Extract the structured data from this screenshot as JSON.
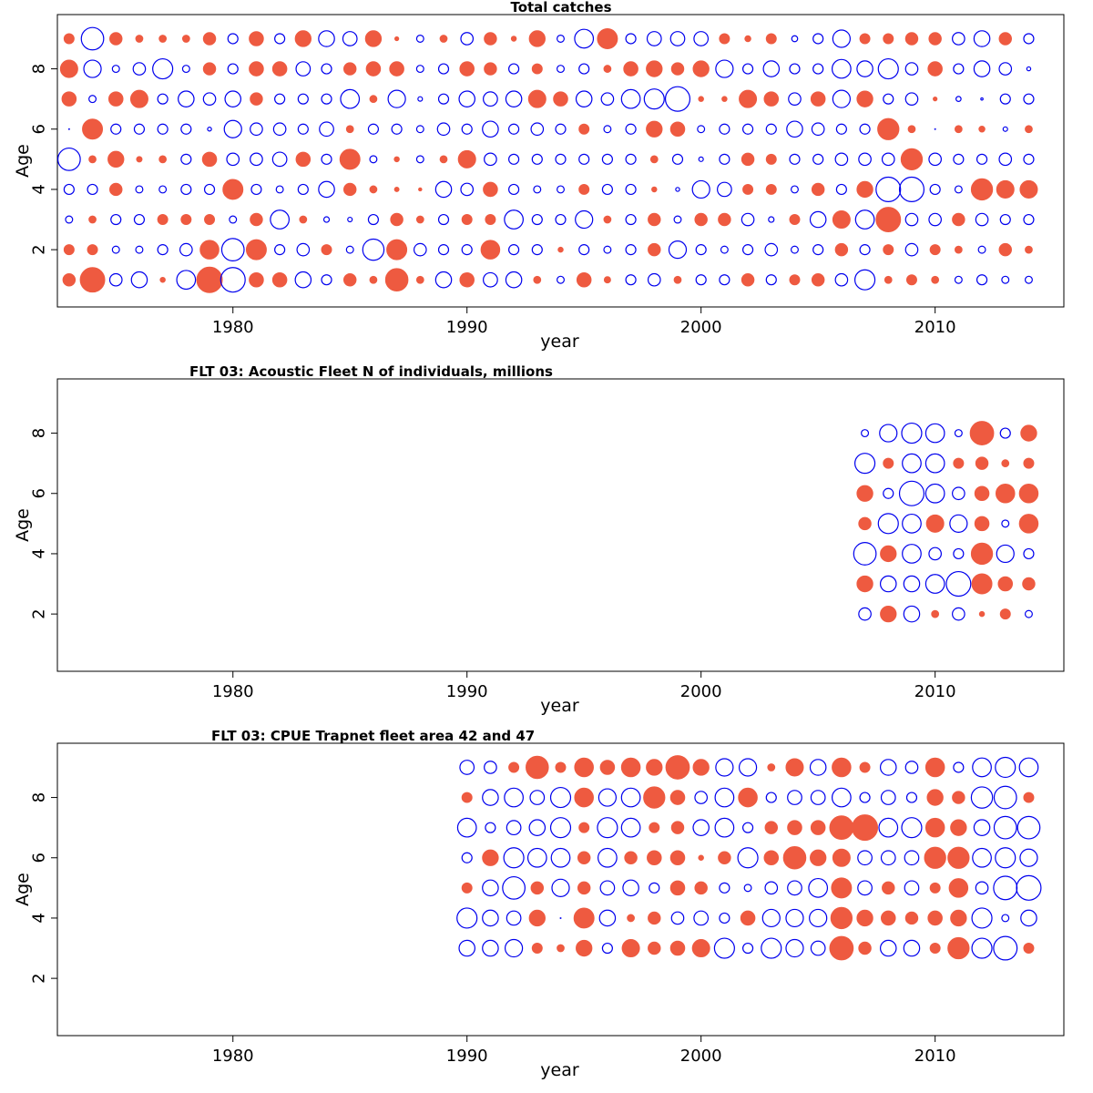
{
  "colors": {
    "positive": "#EE5A40",
    "negative": "#0000EE",
    "frame": "#000000"
  },
  "chart_data": [
    {
      "type": "scatter",
      "subtype": "bubble",
      "title": "Total catches",
      "xlabel": "year",
      "ylabel": "Age",
      "xlim": [
        1972.5,
        2015.5
      ],
      "ylim": [
        0.1,
        9.8
      ],
      "xticks": [
        1980,
        1990,
        2000,
        2010
      ],
      "yticks": [
        2,
        4,
        6,
        8
      ],
      "years": [
        1973,
        1974,
        1975,
        1976,
        1977,
        1978,
        1979,
        1980,
        1981,
        1982,
        1983,
        1984,
        1985,
        1986,
        1987,
        1988,
        1989,
        1990,
        1991,
        1992,
        1993,
        1994,
        1995,
        1996,
        1997,
        1998,
        1999,
        2000,
        2001,
        2002,
        2003,
        2004,
        2005,
        2006,
        2007,
        2008,
        2009,
        2010,
        2011,
        2012,
        2013,
        2014
      ],
      "ages": [
        1,
        2,
        3,
        4,
        5,
        6,
        7,
        8,
        9
      ],
      "values": [
        [
          3,
          12,
          -3,
          -5,
          0.5,
          -7,
          13,
          -12,
          4,
          4,
          -5,
          -2,
          3,
          1,
          10,
          1,
          -5,
          4,
          -4,
          -5,
          1,
          -1,
          4,
          0.8,
          -2,
          -3,
          1,
          -2,
          -2,
          3,
          -2,
          2,
          3,
          -3,
          -8,
          1,
          2,
          1,
          -1,
          -2,
          -1,
          -1
        ],
        [
          2,
          2,
          -1,
          -1,
          -2,
          -3,
          7,
          -10,
          8,
          -2,
          -3,
          2,
          -1,
          -9,
          8,
          -3,
          -2,
          -2,
          7,
          -2,
          -2,
          0.5,
          -2,
          -1,
          -2,
          3,
          -6,
          -2,
          -1,
          -2,
          -3,
          -1,
          -2,
          3,
          -2,
          2,
          -3,
          2,
          1,
          -1,
          3,
          1
        ],
        [
          -1,
          1,
          -2,
          -2,
          2,
          2,
          2,
          -1,
          3,
          -7,
          1,
          -0.6,
          -0.4,
          -2,
          3,
          1,
          -2,
          2,
          2,
          -7,
          -2,
          -2,
          -6,
          1,
          -2,
          3,
          -1,
          3,
          3,
          -3,
          -0.6,
          2,
          -5,
          6,
          -7,
          12,
          -3,
          -3,
          3,
          -3,
          -2,
          -2
        ],
        [
          -2,
          -2,
          3,
          -1,
          -1,
          -2,
          -2,
          8,
          -2,
          -1,
          -2,
          -5,
          3,
          1,
          0.4,
          0.2,
          -5,
          -3,
          4,
          -2,
          -1,
          -1,
          2,
          -2,
          -2,
          0.5,
          -0.3,
          -6,
          -4,
          2,
          2,
          -1,
          3,
          -2,
          5,
          -12,
          -12,
          -2,
          -1,
          9,
          6,
          6
        ],
        [
          -10,
          1,
          5,
          0.6,
          1,
          -2,
          4,
          -3,
          -3,
          -4,
          4,
          -2,
          8,
          -1,
          0.5,
          -1,
          1,
          6,
          -3,
          -2,
          -2,
          -2,
          -2,
          -2,
          -2,
          1,
          -2,
          -0.4,
          -2,
          3,
          2,
          -2,
          -2,
          -3,
          -3,
          -3,
          9,
          -3,
          -2,
          -2,
          -3,
          -2
        ],
        [
          0,
          8,
          -2,
          -2,
          -2,
          -2,
          -0.3,
          -6,
          -3,
          -3,
          -2,
          -4,
          1,
          -2,
          -2,
          -1,
          -3,
          -2,
          -5,
          -2,
          -3,
          -2,
          2,
          -1,
          -2,
          5,
          4,
          -1,
          -2,
          -2,
          -2,
          -5,
          -3,
          -2,
          -2,
          9,
          1,
          0,
          1,
          0.7,
          -0.4,
          1
        ],
        [
          4,
          -1,
          4,
          6,
          -2,
          -5,
          -3,
          -5,
          3,
          -2,
          -2,
          -2,
          -7,
          1,
          -6,
          -0.4,
          -2,
          -5,
          -4,
          -5,
          6,
          4,
          -5,
          -3,
          -7,
          -8,
          -12,
          0.5,
          0.5,
          6,
          4,
          -3,
          4,
          -6,
          5,
          -2,
          -3,
          0.3,
          -0.5,
          -0.1,
          -2,
          -2
        ],
        [
          6,
          -6,
          -1,
          -3,
          -8,
          -1,
          3,
          -2,
          4,
          4,
          -4,
          -2,
          3,
          4,
          4,
          -1,
          -2,
          4,
          3,
          -2,
          2,
          -1,
          -2,
          1,
          4,
          5,
          3,
          5,
          -6,
          -2,
          -5,
          -2,
          -2,
          -7,
          -5,
          -8,
          -3,
          4,
          -2,
          -5,
          -3,
          -0.3
        ],
        [
          2,
          -10,
          3,
          1,
          1,
          1,
          3,
          -2,
          4,
          -2,
          5,
          -5,
          -4,
          5,
          0.3,
          -1,
          1,
          -3,
          3,
          0.5,
          5,
          -1,
          -7,
          8,
          -2,
          -4,
          -4,
          -4,
          2,
          0.7,
          2,
          -0.7,
          -2,
          -6,
          2,
          2,
          3,
          3,
          -3,
          -5,
          3,
          -2
        ]
      ]
    },
    {
      "type": "scatter",
      "subtype": "bubble",
      "title": "FLT 03: Acoustic Fleet   N of individuals, millions",
      "xlabel": "year",
      "ylabel": "Age",
      "xlim": [
        1972.5,
        2015.5
      ],
      "ylim": [
        0.1,
        9.8
      ],
      "xticks": [
        1980,
        1990,
        2000,
        2010
      ],
      "yticks": [
        2,
        4,
        6,
        8
      ],
      "years": [
        2007,
        2008,
        2009,
        2010,
        2011,
        2012,
        2013,
        2014
      ],
      "ages": [
        2,
        3,
        4,
        5,
        6,
        7,
        8
      ],
      "values": [
        [
          -3,
          5,
          -5,
          1,
          -3,
          0.5,
          2,
          -1
        ],
        [
          5,
          -5,
          -5,
          -7,
          -12,
          8,
          4,
          3
        ],
        [
          -10,
          5,
          -7,
          -3,
          -2,
          9,
          -6,
          -2
        ],
        [
          3,
          -8,
          -7,
          6,
          -6,
          4,
          -1,
          7
        ],
        [
          5,
          -2,
          -12,
          -7,
          -3,
          4,
          7,
          7
        ],
        [
          -8,
          2,
          -7,
          -7,
          2,
          3,
          1,
          2
        ],
        [
          -1,
          -6,
          -8,
          -7,
          -1,
          11,
          -2,
          5
        ]
      ]
    },
    {
      "type": "scatter",
      "subtype": "bubble",
      "title": "FLT 03: CPUE Trapnet fleet area 42 and 47",
      "xlabel": "year",
      "ylabel": "Age",
      "xlim": [
        1972.5,
        2015.5
      ],
      "ylim": [
        0.1,
        9.8
      ],
      "xticks": [
        1980,
        1990,
        2000,
        2010
      ],
      "yticks": [
        2,
        4,
        6,
        8
      ],
      "years": [
        1990,
        1991,
        1992,
        1993,
        1994,
        1995,
        1996,
        1997,
        1998,
        1999,
        2000,
        2001,
        2002,
        2003,
        2004,
        2005,
        2006,
        2007,
        2008,
        2009,
        2010,
        2011,
        2012,
        2013,
        2014
      ],
      "ages": [
        3,
        4,
        5,
        6,
        7,
        8,
        9
      ],
      "values": [
        [
          -5,
          -5,
          -6,
          2,
          1,
          5,
          -2,
          6,
          3,
          4,
          6,
          -8,
          -2,
          -8,
          -6,
          -4,
          11,
          3,
          -5,
          -5,
          2,
          9,
          -8,
          -11,
          2
        ],
        [
          -8,
          -5,
          -4,
          5,
          0,
          8,
          -5,
          1,
          3,
          -3,
          -4,
          -2,
          4,
          -6,
          -6,
          -6,
          9,
          5,
          4,
          3,
          4,
          5,
          -8,
          -1,
          -5
        ],
        [
          2,
          -5,
          -10,
          3,
          -6,
          3,
          -4,
          -5,
          -2,
          4,
          3,
          -2,
          -1,
          -3,
          -4,
          -7,
          8,
          -4,
          3,
          -4,
          2,
          7,
          -3,
          -11,
          -12
        ],
        [
          -2,
          5,
          -8,
          -7,
          -7,
          3,
          -7,
          3,
          4,
          4,
          0.5,
          3,
          -8,
          4,
          10,
          5,
          6,
          -4,
          -4,
          -4,
          9,
          9,
          -7,
          -8,
          -6
        ],
        [
          -7,
          -2,
          -4,
          -5,
          -8,
          2,
          -8,
          -7,
          2,
          3,
          -5,
          -7,
          -2,
          3,
          4,
          4,
          11,
          13,
          -7,
          -8,
          7,
          5,
          -5,
          -10,
          -10
        ],
        [
          2,
          -5,
          -7,
          -4,
          -8,
          7,
          -6,
          -7,
          9,
          4,
          -3,
          -7,
          7,
          -2,
          -4,
          -4,
          -7,
          -2,
          -4,
          -2,
          5,
          3,
          -9,
          -10,
          2
        ],
        [
          -4,
          -3,
          2,
          10,
          2,
          7,
          4,
          7,
          5,
          11,
          5,
          -6,
          -6,
          1,
          6,
          -5,
          7,
          2,
          -5,
          -3,
          7,
          -2,
          -7,
          -8,
          -7
        ]
      ]
    }
  ]
}
